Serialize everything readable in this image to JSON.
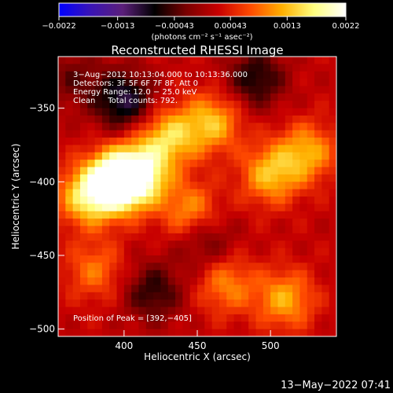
{
  "colorbar": {
    "tick_labels": [
      "−0.0022",
      "−0.0013",
      "−0.00043",
      "0.00043",
      "0.0013",
      "0.0022"
    ],
    "tick_values": [
      -0.0022,
      -0.0013,
      -0.00043,
      0.00043,
      0.0013,
      0.0022
    ],
    "units_label": "(photons cm⁻² s⁻¹ asec⁻²)",
    "colors": [
      "#0000ff",
      "#3a14b4",
      "#5b1f7a",
      "#000000",
      "#7a0000",
      "#c80000",
      "#ff4a00",
      "#ffb000",
      "#ffff80",
      "#ffffff"
    ]
  },
  "chart_data": {
    "type": "heatmap",
    "title": "Reconstructed RHESSI Image",
    "xlabel": "Heliocentric X (arcsec)",
    "ylabel": "Heliocentric Y (arcsec)",
    "xlim": [
      355,
      545
    ],
    "ylim": [
      -505,
      -315
    ],
    "x_ticks": [
      400,
      450,
      500
    ],
    "y_ticks": [
      -350,
      -400,
      -450,
      -500
    ],
    "x_tick_labels": [
      "400",
      "450",
      "500"
    ],
    "y_tick_labels": [
      "−350",
      "−400",
      "−450",
      "−500"
    ],
    "value_range": [
      -0.0022,
      0.0022
    ],
    "peak": {
      "x": 392,
      "y": -405
    },
    "features": [
      {
        "x": 395,
        "y": -400,
        "value": 0.0022
      },
      {
        "x": 410,
        "y": -395,
        "value": 0.0016
      },
      {
        "x": 375,
        "y": -410,
        "value": 0.0013
      },
      {
        "x": 430,
        "y": -370,
        "value": 0.0012
      },
      {
        "x": 460,
        "y": -360,
        "value": 0.0011
      },
      {
        "x": 500,
        "y": -395,
        "value": 0.0011
      },
      {
        "x": 525,
        "y": -380,
        "value": 0.001
      },
      {
        "x": 445,
        "y": -420,
        "value": 0.0009
      },
      {
        "x": 510,
        "y": -480,
        "value": 0.001
      },
      {
        "x": 470,
        "y": -470,
        "value": 0.0008
      },
      {
        "x": 380,
        "y": -460,
        "value": 0.0007
      },
      {
        "x": 420,
        "y": -475,
        "value": -0.0008
      },
      {
        "x": 455,
        "y": -440,
        "value": -0.0006
      },
      {
        "x": 400,
        "y": -345,
        "value": -0.0012
      },
      {
        "x": 490,
        "y": -330,
        "value": -0.0009
      },
      {
        "x": 365,
        "y": -330,
        "value": -0.0005
      }
    ],
    "annotations": {
      "time_range": "3−Aug−2012 10:13:04.000 to 10:13:36.000",
      "detectors": "Detectors: 3F 5F 6F 7F 8F, Att 0",
      "energy": "Energy Range: 12.0 − 25.0 keV",
      "clean": "Clean     Total counts: 792.",
      "peak_text": "Position of Peak = [392,−405]"
    }
  },
  "footer": {
    "timestamp": "13−May−2022 07:41"
  }
}
